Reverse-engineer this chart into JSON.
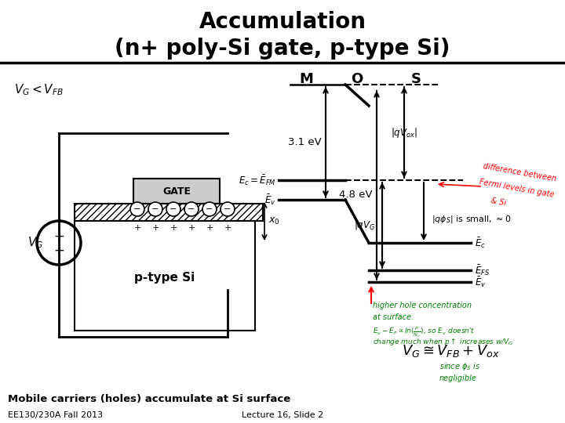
{
  "title_line1": "Accumulation",
  "title_line2": "(n+ poly-Si gate, p-type Si)",
  "title_fontsize": 20,
  "bg_color": "#ffffff",
  "label_VG_VFB": "$V_G < V_{FB}$",
  "label_M": "M",
  "label_O": "O",
  "label_S": "S",
  "label_31eV": "3.1 eV",
  "label_48eV": "4.8 eV",
  "label_Ec_EFM": "$E_c= \\bar{E}_{FM}$",
  "label_Ev_M": "$\\bar{E}_v$",
  "label_x0": "$x_0$",
  "label_qVox": "$| qV_{ox} |$",
  "label_qVG": "$|qV_G|$",
  "label_qphis": "$|q\\phi_S|$ is small, $\\approx 0$",
  "label_Ec_right": "$\\bar{E}_c$",
  "label_EFS": "$\\bar{E}_{FS}$",
  "label_Ev_right": "$\\bar{E}_v$",
  "label_gate": "GATE",
  "label_ptype": "p-type Si",
  "label_mobile": "Mobile carriers (holes) accumulate at Si surface",
  "label_course": "EE130/230A Fall 2013",
  "label_lecture": "Lecture 16, Slide 2",
  "red_text1": "difference between",
  "red_text2": "Fermi levels in gate",
  "red_text3": "& Si",
  "green_text1": "higher hole concentration",
  "green_text2": "at surface.",
  "green_text3": "$E_v-E_F\\propto ln(\\frac{p}{N_v})$, so $E_v$ doesn't",
  "green_text4": "change much when p$\\uparrow$ increases w/$V_G$",
  "formula": "$V_G \\cong V_{FB} + V_{ox}$",
  "formula2": "since $\\phi_S$ is",
  "formula3": "negligible"
}
